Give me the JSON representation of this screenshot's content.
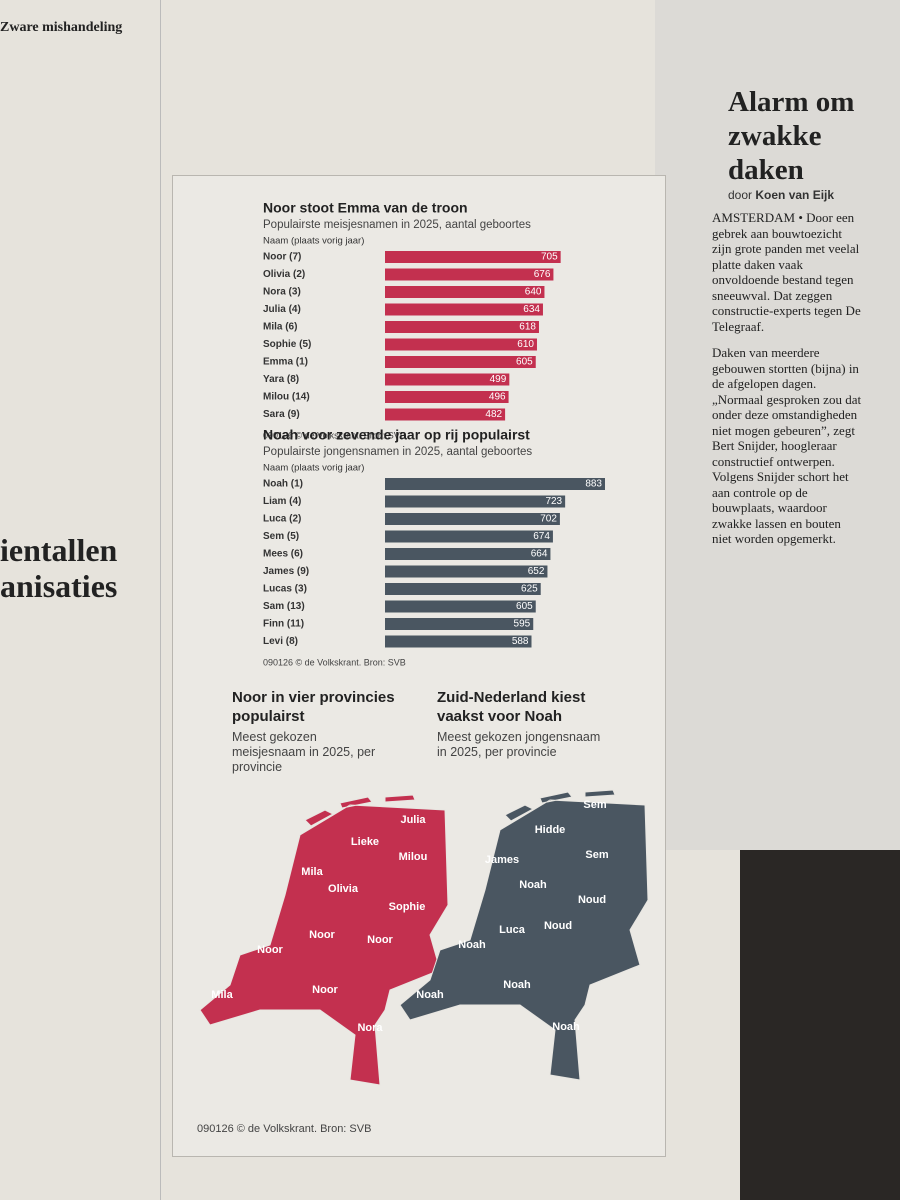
{
  "chart_data": [
    {
      "type": "bar",
      "orientation": "horizontal",
      "title": "Noor stoot Emma van de troon",
      "subtitle": "Populairste meisjesnamen in 2025, aantal geboortes",
      "header": "Naam (plaats vorig jaar)",
      "categories": [
        "Noor (7)",
        "Olivia (2)",
        "Nora (3)",
        "Julia (4)",
        "Mila (6)",
        "Sophie (5)",
        "Emma (1)",
        "Yara (8)",
        "Milou (14)",
        "Sara (9)"
      ],
      "values": [
        705,
        676,
        640,
        634,
        618,
        610,
        605,
        499,
        496,
        482
      ],
      "color": "#c3304f",
      "source": "090126 © de Volkskrant. Bron: SVB"
    },
    {
      "type": "bar",
      "orientation": "horizontal",
      "title": "Noah voor zevende jaar op rij populairst",
      "subtitle": "Populairste jongensnamen in 2025, aantal geboortes",
      "header": "Naam (plaats vorig jaar)",
      "categories": [
        "Noah (1)",
        "Liam (4)",
        "Luca (2)",
        "Sem (5)",
        "Mees (6)",
        "James (9)",
        "Lucas (3)",
        "Sam (13)",
        "Finn (11)",
        "Levi (8)"
      ],
      "values": [
        883,
        723,
        702,
        674,
        664,
        652,
        625,
        605,
        595,
        588
      ],
      "color": "#4a5661",
      "source": "090126 © de Volkskrant. Bron: SVB"
    }
  ],
  "maps": [
    {
      "title": "Noor in vier provincies populairst",
      "subtitle": "Meest gekozen meisjesnaam in 2025, per provincie",
      "color": "#c3304f",
      "labels": [
        "Julia",
        "Lieke",
        "Milou",
        "Mila",
        "Olivia",
        "Sophie",
        "Noor",
        "Noor",
        "Noor",
        "Noor",
        "Mila",
        "Nora"
      ]
    },
    {
      "title": "Zuid-Nederland kiest vaakst voor Noah",
      "subtitle": "Meest gekozen jongensnaam in 2025, per provincie",
      "color": "#4a5661",
      "labels": [
        "Sem",
        "Hidde",
        "Sem",
        "James",
        "Noah",
        "Noud",
        "Luca",
        "Noud",
        "Noah",
        "Noah",
        "Noah",
        "Noah"
      ]
    }
  ],
  "source": "090126 © de Volkskrant. Bron: SVB",
  "articles": {
    "left_heading": "Zware mishandeling",
    "left_headline": [
      "ientallen",
      "anisaties"
    ],
    "right_headline": "Alarm om zwakke daken",
    "right_byline_prefix": "door",
    "right_author": "Koen van Eijk",
    "right_lead": "AMSTERDAM • Door een gebrek aan bouwtoezicht zijn grote panden met veelal platte daken vaak onvoldoende bestand tegen sneeuwval. Dat zeggen constructie-experts tegen De Telegraaf.",
    "right_body": "Daken van meerdere gebouwen stortten (bijna) in de afgelopen dagen. „Normaal gesproken zou dat onder deze omstandigheden niet mogen gebeuren”, zegt Bert Snijder, hoogleraar constructief ontwerpen. Volgens Snijder schort het aan controle op de bouwplaats, waardoor zwakke lassen en bouten niet worden opgemerkt."
  }
}
